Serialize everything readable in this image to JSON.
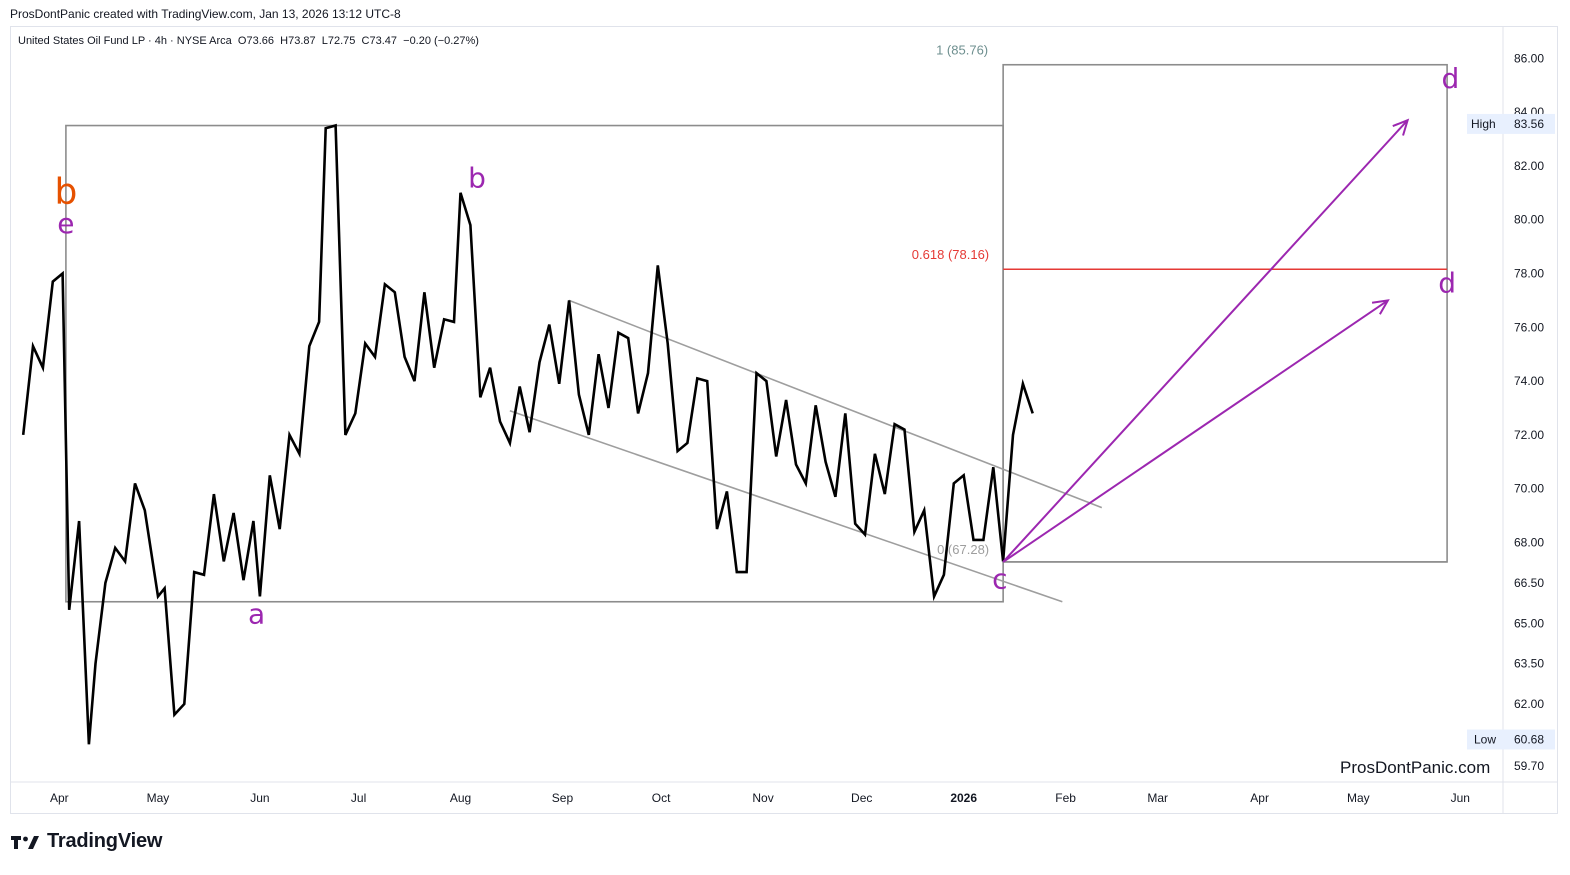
{
  "header": {
    "creator_line": "ProsDontPanic created with TradingView.com, Jan 13, 2026 13:12 UTC-8"
  },
  "legend": {
    "symbol_line": "United States Oil Fund LP · 4h · NYSE Arca",
    "open_label": "O",
    "open": "73.66",
    "high_label": "H",
    "high": "73.87",
    "low_label": "L",
    "low": "72.75",
    "close_label": "C",
    "close": "73.47",
    "change": "−0.20 (−0.27%)"
  },
  "branding": {
    "logo_text": "TradingView",
    "watermark": "ProsDontPanic.com"
  },
  "colors": {
    "price_line": "#000000",
    "channel": "#9e9e9e",
    "box": "#8c8c8c",
    "fib_red": "#e53935",
    "fib_top": "#6e8f8f",
    "arrows": "#9c27b0",
    "wave_purple": "#9c27b0",
    "wave_orange": "#e65100"
  },
  "chart_data": {
    "type": "line",
    "ylim": [
      59.1,
      87.2
    ],
    "xlim": [
      "2025-03-17",
      "2026-06-14"
    ],
    "price_axis": {
      "ticks": [
        "86.00",
        "84.00",
        "82.00",
        "80.00",
        "78.00",
        "76.00",
        "74.00",
        "72.00",
        "70.00",
        "68.00",
        "66.50",
        "65.00",
        "63.50",
        "62.00",
        "59.70"
      ],
      "high_label": "High",
      "high_value": "83.56",
      "low_label": "Low",
      "low_value": "60.68"
    },
    "time_axis": [
      {
        "label": "Apr",
        "x": "2025-04-01"
      },
      {
        "label": "May",
        "x": "2025-05-01"
      },
      {
        "label": "Jun",
        "x": "2025-06-01"
      },
      {
        "label": "Jul",
        "x": "2025-07-01"
      },
      {
        "label": "Aug",
        "x": "2025-08-01"
      },
      {
        "label": "Sep",
        "x": "2025-09-01"
      },
      {
        "label": "Oct",
        "x": "2025-10-01"
      },
      {
        "label": "Nov",
        "x": "2025-11-01"
      },
      {
        "label": "Dec",
        "x": "2025-12-01"
      },
      {
        "label": "2026",
        "x": "2026-01-01",
        "bold": true
      },
      {
        "label": "Feb",
        "x": "2026-02-01"
      },
      {
        "label": "Mar",
        "x": "2026-03-01"
      },
      {
        "label": "Apr",
        "x": "2026-04-01"
      },
      {
        "label": "May",
        "x": "2026-05-01"
      },
      {
        "label": "Jun",
        "x": "2026-06-01"
      }
    ],
    "series": [
      {
        "points": [
          {
            "x": "2025-03-21",
            "y": 72.0
          },
          {
            "x": "2025-03-24",
            "y": 75.3
          },
          {
            "x": "2025-03-27",
            "y": 74.5
          },
          {
            "x": "2025-03-30",
            "y": 77.7
          },
          {
            "x": "2025-04-02",
            "y": 78.0
          },
          {
            "x": "2025-04-04",
            "y": 65.5
          },
          {
            "x": "2025-04-07",
            "y": 68.8
          },
          {
            "x": "2025-04-10",
            "y": 60.5
          },
          {
            "x": "2025-04-12",
            "y": 63.5
          },
          {
            "x": "2025-04-15",
            "y": 66.5
          },
          {
            "x": "2025-04-18",
            "y": 67.8
          },
          {
            "x": "2025-04-21",
            "y": 67.3
          },
          {
            "x": "2025-04-24",
            "y": 70.2
          },
          {
            "x": "2025-04-27",
            "y": 69.2
          },
          {
            "x": "2025-05-01",
            "y": 66.0
          },
          {
            "x": "2025-05-03",
            "y": 66.3
          },
          {
            "x": "2025-05-06",
            "y": 61.6
          },
          {
            "x": "2025-05-09",
            "y": 62.0
          },
          {
            "x": "2025-05-12",
            "y": 66.9
          },
          {
            "x": "2025-05-15",
            "y": 66.8
          },
          {
            "x": "2025-05-18",
            "y": 69.8
          },
          {
            "x": "2025-05-21",
            "y": 67.3
          },
          {
            "x": "2025-05-24",
            "y": 69.1
          },
          {
            "x": "2025-05-27",
            "y": 66.6
          },
          {
            "x": "2025-05-30",
            "y": 68.8
          },
          {
            "x": "2025-06-01",
            "y": 66.0
          },
          {
            "x": "2025-06-04",
            "y": 70.5
          },
          {
            "x": "2025-06-07",
            "y": 68.5
          },
          {
            "x": "2025-06-10",
            "y": 72.0
          },
          {
            "x": "2025-06-13",
            "y": 71.3
          },
          {
            "x": "2025-06-16",
            "y": 75.3
          },
          {
            "x": "2025-06-19",
            "y": 76.2
          },
          {
            "x": "2025-06-21",
            "y": 83.4
          },
          {
            "x": "2025-06-24",
            "y": 83.5
          },
          {
            "x": "2025-06-27",
            "y": 72.0
          },
          {
            "x": "2025-06-30",
            "y": 72.8
          },
          {
            "x": "2025-07-03",
            "y": 75.4
          },
          {
            "x": "2025-07-06",
            "y": 74.9
          },
          {
            "x": "2025-07-09",
            "y": 77.6
          },
          {
            "x": "2025-07-12",
            "y": 77.3
          },
          {
            "x": "2025-07-15",
            "y": 74.9
          },
          {
            "x": "2025-07-18",
            "y": 74.0
          },
          {
            "x": "2025-07-21",
            "y": 77.3
          },
          {
            "x": "2025-07-24",
            "y": 74.5
          },
          {
            "x": "2025-07-27",
            "y": 76.3
          },
          {
            "x": "2025-07-30",
            "y": 76.2
          },
          {
            "x": "2025-08-01",
            "y": 81.0
          },
          {
            "x": "2025-08-04",
            "y": 79.8
          },
          {
            "x": "2025-08-07",
            "y": 73.4
          },
          {
            "x": "2025-08-10",
            "y": 74.5
          },
          {
            "x": "2025-08-13",
            "y": 72.5
          },
          {
            "x": "2025-08-16",
            "y": 71.7
          },
          {
            "x": "2025-08-19",
            "y": 73.8
          },
          {
            "x": "2025-08-22",
            "y": 72.1
          },
          {
            "x": "2025-08-25",
            "y": 74.7
          },
          {
            "x": "2025-08-28",
            "y": 76.1
          },
          {
            "x": "2025-08-31",
            "y": 73.9
          },
          {
            "x": "2025-09-03",
            "y": 77.0
          },
          {
            "x": "2025-09-06",
            "y": 73.5
          },
          {
            "x": "2025-09-09",
            "y": 72.0
          },
          {
            "x": "2025-09-12",
            "y": 75.0
          },
          {
            "x": "2025-09-15",
            "y": 73.0
          },
          {
            "x": "2025-09-18",
            "y": 75.8
          },
          {
            "x": "2025-09-21",
            "y": 75.6
          },
          {
            "x": "2025-09-24",
            "y": 72.8
          },
          {
            "x": "2025-09-27",
            "y": 74.3
          },
          {
            "x": "2025-09-30",
            "y": 78.3
          },
          {
            "x": "2025-10-03",
            "y": 75.4
          },
          {
            "x": "2025-10-06",
            "y": 71.4
          },
          {
            "x": "2025-10-09",
            "y": 71.7
          },
          {
            "x": "2025-10-12",
            "y": 74.1
          },
          {
            "x": "2025-10-15",
            "y": 74.0
          },
          {
            "x": "2025-10-18",
            "y": 68.5
          },
          {
            "x": "2025-10-21",
            "y": 69.9
          },
          {
            "x": "2025-10-24",
            "y": 66.9
          },
          {
            "x": "2025-10-27",
            "y": 66.9
          },
          {
            "x": "2025-10-30",
            "y": 74.3
          },
          {
            "x": "2025-11-02",
            "y": 74.0
          },
          {
            "x": "2025-11-05",
            "y": 71.2
          },
          {
            "x": "2025-11-08",
            "y": 73.3
          },
          {
            "x": "2025-11-11",
            "y": 70.9
          },
          {
            "x": "2025-11-14",
            "y": 70.2
          },
          {
            "x": "2025-11-17",
            "y": 73.1
          },
          {
            "x": "2025-11-20",
            "y": 71.0
          },
          {
            "x": "2025-11-23",
            "y": 69.7
          },
          {
            "x": "2025-11-26",
            "y": 72.8
          },
          {
            "x": "2025-11-29",
            "y": 68.7
          },
          {
            "x": "2025-12-02",
            "y": 68.3
          },
          {
            "x": "2025-12-05",
            "y": 71.3
          },
          {
            "x": "2025-12-08",
            "y": 69.8
          },
          {
            "x": "2025-12-11",
            "y": 72.4
          },
          {
            "x": "2025-12-14",
            "y": 72.2
          },
          {
            "x": "2025-12-17",
            "y": 68.4
          },
          {
            "x": "2025-12-20",
            "y": 69.2
          },
          {
            "x": "2025-12-23",
            "y": 66.0
          },
          {
            "x": "2025-12-26",
            "y": 66.8
          },
          {
            "x": "2025-12-29",
            "y": 70.2
          },
          {
            "x": "2026-01-01",
            "y": 70.5
          },
          {
            "x": "2026-01-04",
            "y": 68.1
          },
          {
            "x": "2026-01-07",
            "y": 68.1
          },
          {
            "x": "2026-01-10",
            "y": 70.8
          },
          {
            "x": "2026-01-13",
            "y": 67.3
          },
          {
            "x": "2026-01-16",
            "y": 72.0
          },
          {
            "x": "2026-01-19",
            "y": 73.9
          },
          {
            "x": "2026-01-22",
            "y": 72.8
          }
        ]
      }
    ],
    "channel_lines": [
      {
        "from": {
          "x": "2025-09-03",
          "y": 77.0
        },
        "to": {
          "x": "2026-02-12",
          "y": 69.3
        }
      },
      {
        "from": {
          "x": "2025-08-16",
          "y": 72.9
        },
        "to": {
          "x": "2026-01-31",
          "y": 65.8
        }
      }
    ],
    "boxes": [
      {
        "x0": "2025-04-03",
        "y_top": 83.5,
        "x1": "2026-01-13",
        "y_bottom": 65.8
      },
      {
        "x0": "2026-01-13",
        "y_top": 85.76,
        "x1": "2026-05-28",
        "y_bottom": 67.28
      }
    ],
    "fib_levels": [
      {
        "label": "1 (85.76)",
        "value": 85.76
      },
      {
        "label": "0.618 (78.16)",
        "value": 78.16
      },
      {
        "label": "0 (67.28)",
        "value": 67.28
      }
    ],
    "arrows": [
      {
        "from": {
          "x": "2026-01-13",
          "y": 67.28
        },
        "to": {
          "x": "2026-05-16",
          "y": 83.7
        }
      },
      {
        "from": {
          "x": "2026-01-13",
          "y": 67.28
        },
        "to": {
          "x": "2026-05-10",
          "y": 77.0
        }
      }
    ],
    "wave_labels": [
      {
        "text": "b",
        "x": "2025-04-03",
        "y": 80.6,
        "color": "orange",
        "big": true
      },
      {
        "text": "e",
        "x": "2025-04-03",
        "y": 79.5,
        "color": "purple"
      },
      {
        "text": "a",
        "x": "2025-05-31",
        "y": 65.0,
        "color": "purple"
      },
      {
        "text": "b",
        "x": "2025-08-06",
        "y": 81.2,
        "color": "purple"
      },
      {
        "text": "c",
        "x": "2026-01-12",
        "y": 66.3,
        "color": "purple"
      },
      {
        "text": "d",
        "x": "2026-05-29",
        "y": 84.9,
        "color": "purple"
      },
      {
        "text": "d",
        "x": "2026-05-28",
        "y": 77.3,
        "color": "purple"
      }
    ]
  }
}
